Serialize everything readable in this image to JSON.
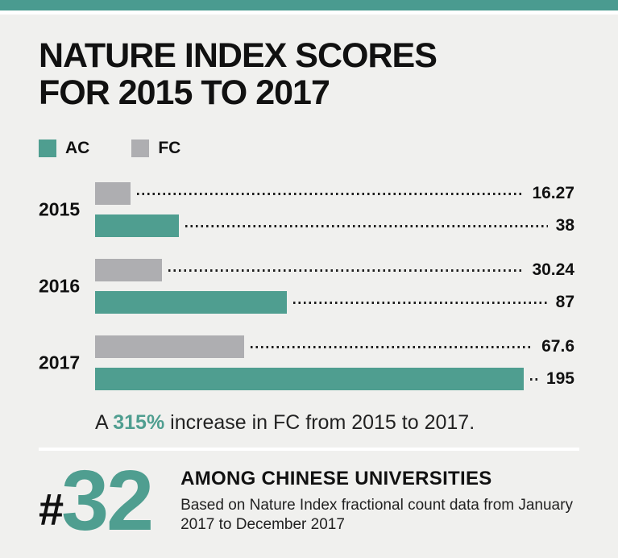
{
  "colors": {
    "accent_teal": "#4f9e90",
    "fc_gray": "#aeaeb1",
    "panel_background": "#f0f0ee",
    "top_strip": "#4a9b90",
    "text_black": "#111111"
  },
  "header": {
    "title_line1": "NATURE INDEX SCORES",
    "title_line2": "FOR 2015 TO 2017"
  },
  "legend": [
    {
      "label": "AC",
      "color": "#4f9e90"
    },
    {
      "label": "FC",
      "color": "#aeaeb1"
    }
  ],
  "chart_data": {
    "type": "bar",
    "orientation": "horizontal",
    "title": "NATURE INDEX SCORES FOR 2015 TO 2017",
    "categories": [
      "2015",
      "2016",
      "2017"
    ],
    "series": [
      {
        "name": "FC",
        "color": "#aeaeb1",
        "values": [
          16.27,
          30.24,
          67.6
        ],
        "labels": [
          "16.27",
          "30.24",
          "67.6"
        ]
      },
      {
        "name": "AC",
        "color": "#4f9e90",
        "values": [
          38,
          87,
          195
        ],
        "labels": [
          "38",
          "87",
          "195"
        ]
      }
    ],
    "bar_order_within_group": [
      "FC",
      "AC"
    ],
    "xlim": [
      0,
      200
    ],
    "grid": false,
    "legend_position": "top-left",
    "value_labels_shown": true,
    "leader_style": "dotted"
  },
  "caption": {
    "prefix": "A",
    "highlight": "315%",
    "suffix": "increase in FC from 2015 to 2017."
  },
  "footer": {
    "rank_symbol": "#",
    "rank_number": "32",
    "heading": "AMONG CHINESE UNIVERSITIES",
    "subtext_line1": "Based on Nature Index fractional count data from January",
    "subtext_line2": "2017 to December 2017"
  }
}
